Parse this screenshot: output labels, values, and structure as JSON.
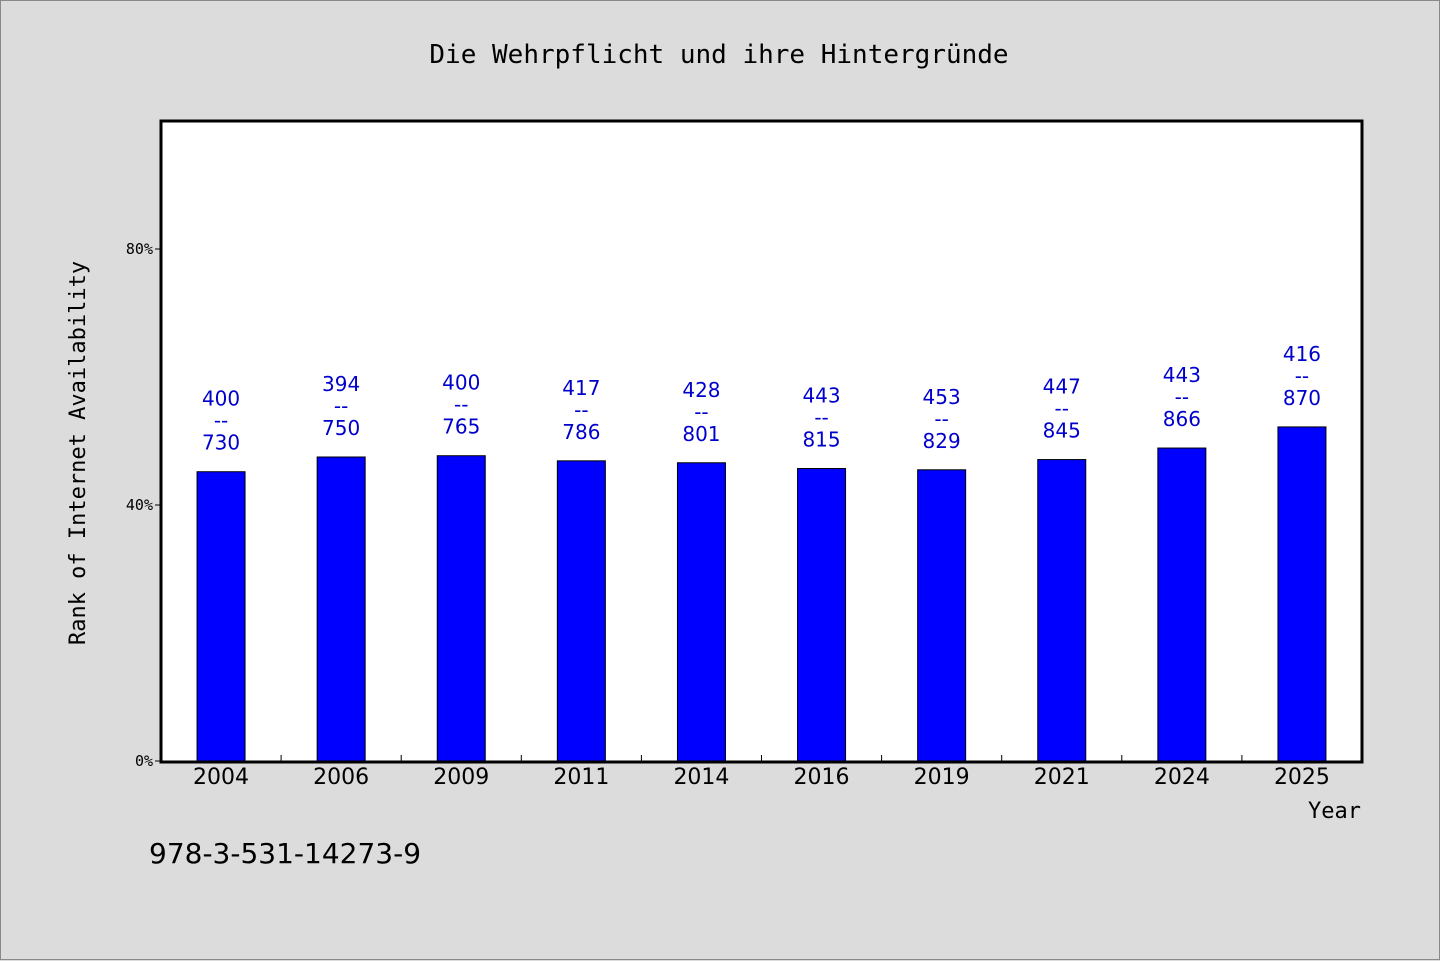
{
  "chart_data": {
    "type": "bar",
    "title": "Die Wehrpflicht und ihre Hintergründe",
    "xlabel": "Year",
    "ylabel": "Rank of Internet Availability",
    "categories": [
      "2004",
      "2006",
      "2009",
      "2011",
      "2014",
      "2016",
      "2019",
      "2021",
      "2024",
      "2025"
    ],
    "values": [
      45.2,
      47.5,
      47.7,
      46.9,
      46.6,
      45.7,
      45.5,
      47.1,
      48.9,
      52.2
    ],
    "data_labels": [
      [
        "400",
        "--",
        "730"
      ],
      [
        "394",
        "--",
        "750"
      ],
      [
        "400",
        "--",
        "765"
      ],
      [
        "417",
        "--",
        "786"
      ],
      [
        "428",
        "--",
        "801"
      ],
      [
        "443",
        "--",
        "815"
      ],
      [
        "453",
        "--",
        "829"
      ],
      [
        "447",
        "--",
        "845"
      ],
      [
        "443",
        "--",
        "866"
      ],
      [
        "416",
        "--",
        "870"
      ]
    ],
    "ylim": [
      0,
      100
    ],
    "yticks": [
      0,
      40,
      80
    ],
    "ytick_labels": [
      "0%",
      "40%",
      "80%"
    ],
    "bar_color": "#0000ff",
    "label_color": "#0000cc",
    "grid": false,
    "legend": "none"
  },
  "footnote": "978-3-531-14273-9"
}
